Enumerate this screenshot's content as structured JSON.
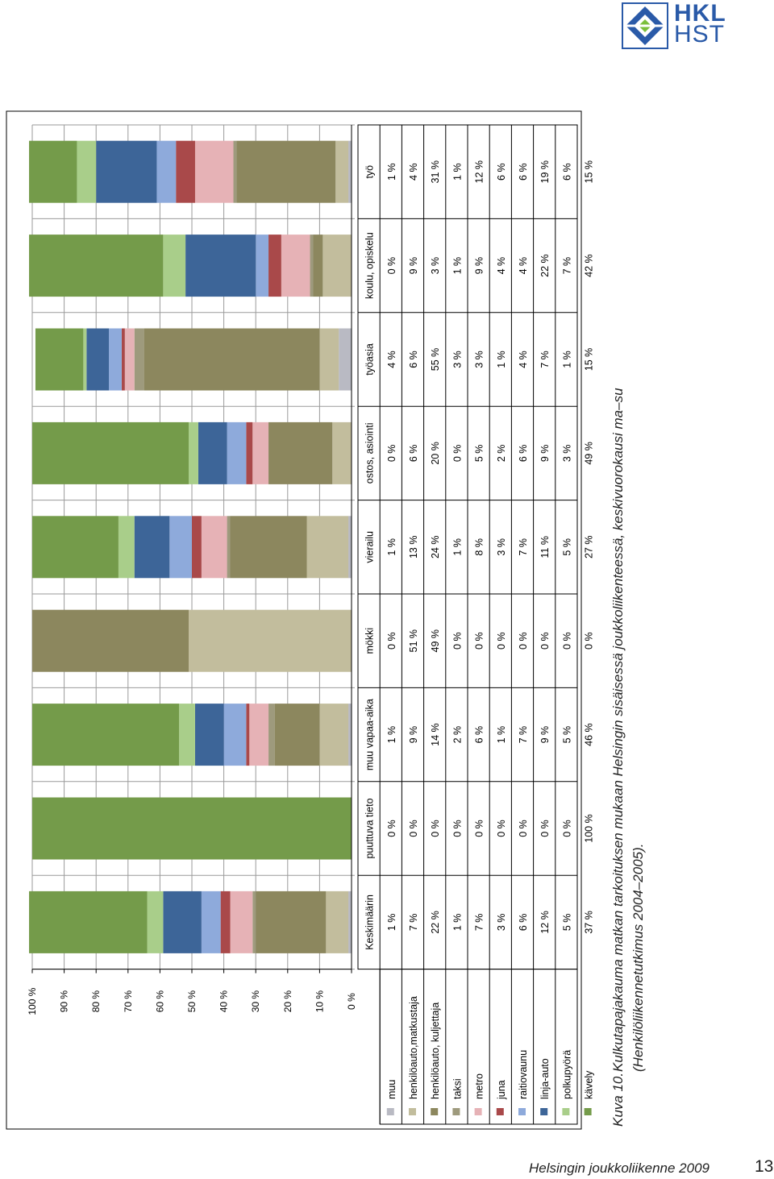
{
  "header": {
    "logo_line1": "HKL",
    "logo_line2": "HST"
  },
  "caption": {
    "label": "Kuva 10.",
    "line1": "Kulkutapajakauma matkan tarkoituksen mukaan Helsingin sisäisessä joukkoliikenteessä, keskivuorokausi ma–su",
    "line2": "(Henkilöliikennetutkimus 2004–2005)."
  },
  "footer": {
    "title": "Helsingin joukkoliikenne 2009",
    "page": "13"
  },
  "colors": {
    "muu": "#b9bac3",
    "henkiloauto_matkustaja": "#c2bd9d",
    "henkiloauto_kuljettaja": "#8c875e",
    "taksi": "#9e9a7d",
    "metro": "#e6b2b6",
    "juna": "#a9494a",
    "raitiovaunu": "#8eaadb",
    "linja-auto": "#3d6598",
    "polkupyora": "#a9ce8a",
    "kavely": "#749b4a"
  },
  "chart_data": {
    "type": "bar",
    "stacked": true,
    "orientation": "vertical-columns, page rotated 90°",
    "ylim": [
      0,
      100
    ],
    "yticks": [
      "0 %",
      "10 %",
      "20 %",
      "30 %",
      "40 %",
      "50 %",
      "60 %",
      "70 %",
      "80 %",
      "90 %",
      "100 %"
    ],
    "grid": true,
    "legend": "table-left",
    "categories": [
      "työ",
      "koulu, opiskelu",
      "työasia",
      "ostos, asiointi",
      "vierailu",
      "mökki",
      "muu vapaa-aika",
      "puuttuva tieto",
      "Keskimäärin"
    ],
    "series": [
      {
        "name": "muu",
        "key": "muu",
        "values": [
          1,
          0,
          4,
          0,
          1,
          0,
          1,
          0,
          1
        ],
        "labels": [
          "1 %",
          "0 %",
          "4 %",
          "0 %",
          "1 %",
          "0 %",
          "1 %",
          "0 %",
          "1 %"
        ]
      },
      {
        "name": "henkilöauto,matkustaja",
        "key": "henkiloauto_matkustaja",
        "values": [
          4,
          9,
          6,
          6,
          13,
          51,
          9,
          0,
          7
        ],
        "labels": [
          "4 %",
          "9 %",
          "6 %",
          "6 %",
          "13 %",
          "51 %",
          "9 %",
          "0 %",
          "7 %"
        ]
      },
      {
        "name": "henkilöauto, kuljettaja",
        "key": "henkiloauto_kuljettaja",
        "values": [
          31,
          3,
          55,
          20,
          24,
          49,
          14,
          0,
          22
        ],
        "labels": [
          "31 %",
          "3 %",
          "55 %",
          "20 %",
          "24 %",
          "49 %",
          "14 %",
          "0 %",
          "22 %"
        ]
      },
      {
        "name": "taksi",
        "key": "taksi",
        "values": [
          1,
          1,
          3,
          0,
          1,
          0,
          2,
          0,
          1
        ],
        "labels": [
          "1 %",
          "1 %",
          "3 %",
          "0 %",
          "1 %",
          "0 %",
          "2 %",
          "0 %",
          "1 %"
        ]
      },
      {
        "name": "metro",
        "key": "metro",
        "values": [
          12,
          9,
          3,
          5,
          8,
          0,
          6,
          0,
          7
        ],
        "labels": [
          "12 %",
          "9 %",
          "3 %",
          "5 %",
          "8 %",
          "0 %",
          "6 %",
          "0 %",
          "7 %"
        ]
      },
      {
        "name": "juna",
        "key": "juna",
        "values": [
          6,
          4,
          1,
          2,
          3,
          0,
          1,
          0,
          3
        ],
        "labels": [
          "6 %",
          "4 %",
          "1 %",
          "2 %",
          "3 %",
          "0 %",
          "1 %",
          "0 %",
          "3 %"
        ]
      },
      {
        "name": "raitiovaunu",
        "key": "raitiovaunu",
        "values": [
          6,
          4,
          4,
          6,
          7,
          0,
          7,
          0,
          6
        ],
        "labels": [
          "6 %",
          "4 %",
          "4 %",
          "6 %",
          "7 %",
          "0 %",
          "7 %",
          "0 %",
          "6 %"
        ]
      },
      {
        "name": "linja-auto",
        "key": "linja-auto",
        "values": [
          19,
          22,
          7,
          9,
          11,
          0,
          9,
          0,
          12
        ],
        "labels": [
          "19 %",
          "22 %",
          "7 %",
          "9 %",
          "11 %",
          "0 %",
          "9 %",
          "0 %",
          "12 %"
        ]
      },
      {
        "name": "polkupyörä",
        "key": "polkupyora",
        "values": [
          6,
          7,
          1,
          3,
          5,
          0,
          5,
          0,
          5
        ],
        "labels": [
          "6 %",
          "7 %",
          "1 %",
          "3 %",
          "5 %",
          "0 %",
          "5 %",
          "0 %",
          "5 %"
        ]
      },
      {
        "name": "kävely",
        "key": "kavely",
        "values": [
          15,
          42,
          15,
          49,
          27,
          0,
          46,
          100,
          37
        ],
        "labels": [
          "15 %",
          "42 %",
          "15 %",
          "49 %",
          "27 %",
          "0 %",
          "46 %",
          "100 %",
          "37 %"
        ]
      }
    ]
  }
}
